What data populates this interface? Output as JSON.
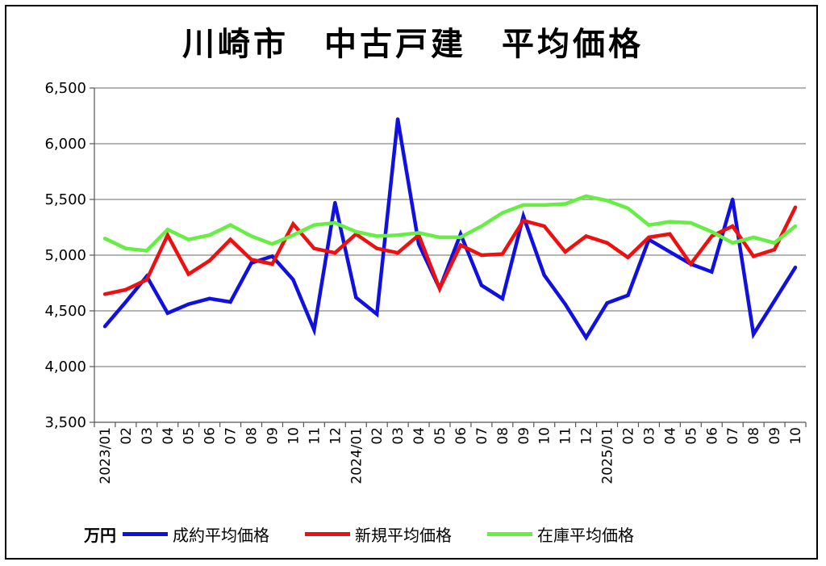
{
  "chart_data": {
    "type": "line",
    "title": "川崎市　中古戸建　平均価格",
    "unit_label": "万円",
    "y_ticks": [
      "6,500",
      "6,000",
      "5,500",
      "5,000",
      "4,500",
      "4,000",
      "3,500"
    ],
    "ylim": [
      3500,
      6500
    ],
    "grid": true,
    "legend_position": "bottom",
    "categories": [
      "2023/01",
      "02",
      "03",
      "04",
      "05",
      "06",
      "07",
      "08",
      "09",
      "10",
      "11",
      "12",
      "2024/01",
      "02",
      "03",
      "04",
      "05",
      "06",
      "07",
      "08",
      "09",
      "10",
      "11",
      "12",
      "2025/01",
      "02",
      "03",
      "04",
      "05",
      "06",
      "07",
      "08",
      "09",
      "10"
    ],
    "series": [
      {
        "name": "成約平均価格",
        "color": "#1010e0",
        "values": [
          4360,
          4580,
          4810,
          4480,
          4560,
          4610,
          4580,
          4930,
          4990,
          4780,
          4330,
          5470,
          4620,
          4470,
          6220,
          5100,
          4700,
          5190,
          4730,
          4610,
          5350,
          4820,
          4560,
          4260,
          4570,
          4640,
          5140,
          5030,
          4920,
          4850,
          5500,
          4290,
          4590,
          4890
        ]
      },
      {
        "name": "新規平均価格",
        "color": "#ee1010",
        "values": [
          4650,
          4690,
          4780,
          5180,
          4830,
          4950,
          5140,
          4960,
          4920,
          5280,
          5060,
          5020,
          5190,
          5060,
          5020,
          5180,
          4700,
          5090,
          5000,
          5010,
          5310,
          5260,
          5030,
          5170,
          5110,
          4980,
          5160,
          5190,
          4920,
          5170,
          5260,
          4990,
          5050,
          5430
        ]
      },
      {
        "name": "在庫平均価格",
        "color": "#66ee44",
        "values": [
          5150,
          5060,
          5040,
          5230,
          5140,
          5180,
          5270,
          5170,
          5100,
          5180,
          5270,
          5290,
          5210,
          5170,
          5180,
          5200,
          5160,
          5160,
          5260,
          5380,
          5450,
          5450,
          5460,
          5530,
          5490,
          5420,
          5270,
          5300,
          5290,
          5210,
          5110,
          5160,
          5110,
          5260
        ]
      }
    ]
  }
}
